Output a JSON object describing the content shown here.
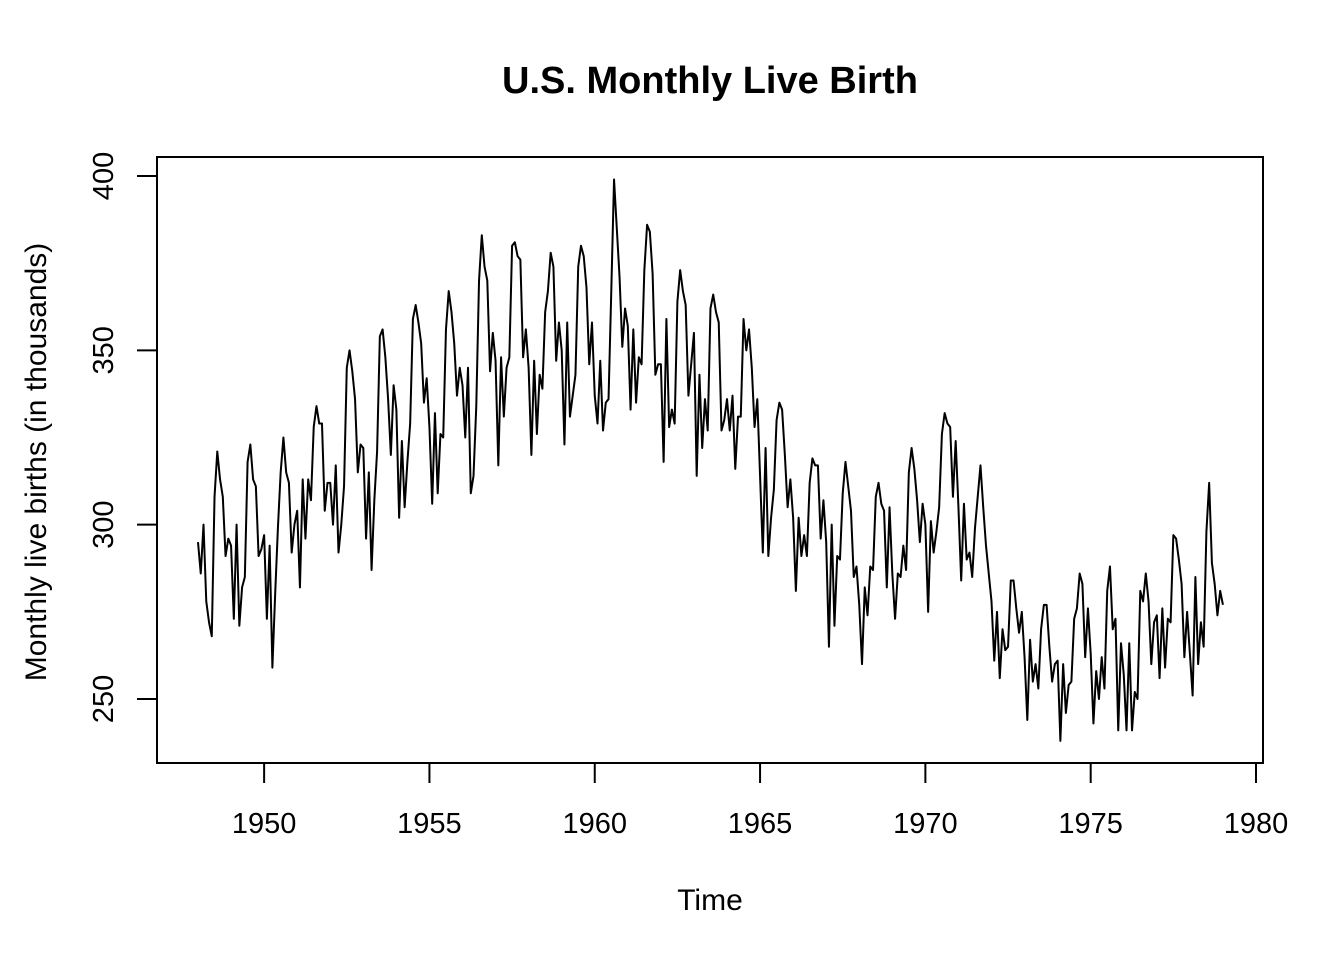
{
  "chart_data": {
    "type": "line",
    "title": "U.S. Monthly Live Birth",
    "xlabel": "Time",
    "ylabel": "Monthly live births (in thousands)",
    "xlim": [
      1948,
      1979
    ],
    "ylim": [
      232,
      405
    ],
    "x_ticks": [
      1950,
      1955,
      1960,
      1965,
      1970,
      1975,
      1980
    ],
    "y_ticks": [
      250,
      300,
      350,
      400
    ],
    "grid": false,
    "series": [
      {
        "x_start": 1948,
        "frequency": 12,
        "values": [
          295,
          286,
          300,
          278,
          272,
          268,
          308,
          321,
          313,
          308,
          291,
          296,
          294,
          273,
          300,
          271,
          282,
          285,
          318,
          323,
          313,
          311,
          291,
          293,
          297,
          273,
          294,
          259,
          280,
          299,
          315,
          325,
          315,
          312,
          292,
          300,
          304,
          282,
          313,
          296,
          313,
          307,
          328,
          334,
          329,
          329,
          304,
          312,
          312,
          300,
          317,
          292,
          300,
          311,
          345,
          350,
          344,
          336,
          315,
          323,
          322,
          296,
          315,
          287,
          307,
          321,
          354,
          356,
          348,
          336,
          320,
          340,
          333,
          302,
          324,
          305,
          318,
          329,
          359,
          363,
          358,
          352,
          335,
          342,
          328,
          306,
          332,
          309,
          326,
          325,
          356,
          367,
          361,
          352,
          337,
          345,
          340,
          325,
          345,
          309,
          314,
          334,
          370,
          383,
          374,
          370,
          344,
          355,
          347,
          317,
          348,
          331,
          345,
          348,
          380,
          381,
          377,
          376,
          348,
          356,
          345,
          320,
          347,
          326,
          343,
          339,
          361,
          367,
          378,
          374,
          347,
          358,
          350,
          323,
          358,
          331,
          337,
          343,
          374,
          380,
          377,
          368,
          346,
          358,
          337,
          329,
          347,
          327,
          335,
          336,
          367,
          399,
          385,
          371,
          351,
          362,
          357,
          333,
          356,
          335,
          348,
          346,
          373,
          386,
          384,
          372,
          343,
          346,
          346,
          318,
          359,
          328,
          333,
          329,
          364,
          373,
          367,
          363,
          337,
          346,
          355,
          314,
          343,
          322,
          336,
          327,
          362,
          366,
          361,
          358,
          327,
          330,
          336,
          327,
          337,
          316,
          331,
          331,
          359,
          350,
          356,
          345,
          328,
          336,
          314,
          292,
          322,
          291,
          302,
          310,
          330,
          335,
          333,
          320,
          305,
          313,
          302,
          281,
          302,
          291,
          297,
          291,
          312,
          319,
          317,
          317,
          296,
          307,
          295,
          265,
          300,
          271,
          291,
          290,
          309,
          318,
          311,
          304,
          285,
          288,
          277,
          260,
          282,
          274,
          288,
          287,
          308,
          312,
          306,
          304,
          282,
          305,
          286,
          273,
          286,
          285,
          294,
          287,
          315,
          322,
          316,
          307,
          295,
          306,
          300,
          275,
          301,
          292,
          298,
          305,
          326,
          332,
          329,
          328,
          308,
          324,
          305,
          284,
          306,
          290,
          292,
          285,
          299,
          308,
          317,
          305,
          294,
          286,
          278,
          261,
          275,
          256,
          270,
          264,
          265,
          284,
          284,
          276,
          269,
          275,
          262,
          244,
          267,
          255,
          260,
          253,
          270,
          277,
          277,
          265,
          255,
          260,
          261,
          238,
          260,
          246,
          254,
          255,
          273,
          276,
          286,
          283,
          262,
          276,
          263,
          243,
          258,
          250,
          262,
          253,
          281,
          288,
          270,
          273,
          241,
          266,
          257,
          241,
          266,
          241,
          252,
          250,
          281,
          278,
          286,
          278,
          260,
          272,
          274,
          256,
          276,
          259,
          273,
          272,
          297,
          296,
          290,
          283,
          262,
          275,
          263,
          251,
          285,
          260,
          272,
          265,
          298,
          312,
          289,
          283,
          274,
          281,
          277
        ]
      }
    ]
  }
}
